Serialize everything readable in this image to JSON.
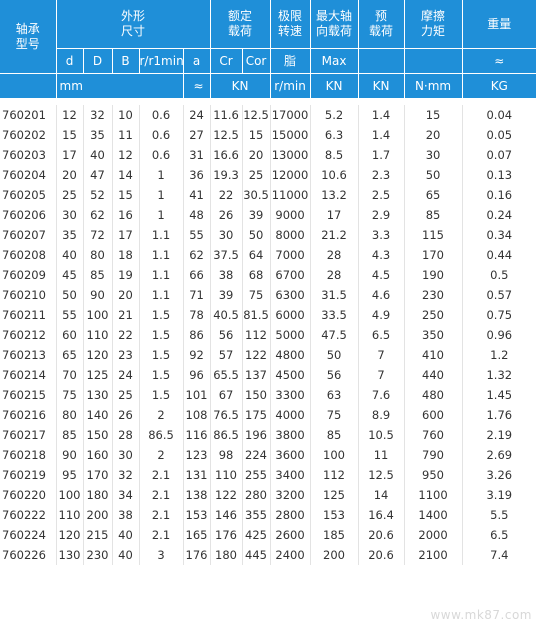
{
  "header": {
    "model": "轴承\n型号",
    "dims": "外形\n尺寸",
    "rated_load": "额定\n载荷",
    "speed_limit": "极限\n转速",
    "max_axial": "最大轴\n向载荷",
    "preload": "预\n载荷",
    "friction": "摩擦\n力矩",
    "weight": "重量",
    "sub": [
      "d",
      "D",
      "B",
      "r/r1min",
      "a",
      "Cr",
      "Cor",
      "脂",
      "Max",
      "",
      "",
      "≈"
    ],
    "unit_mm": "mm",
    "unit_approx": "≈",
    "unit_kn": "KN",
    "unit_rmin": "r/min",
    "unit_kn2": "KN",
    "unit_kn3": "KN",
    "unit_nmm": "N·mm",
    "unit_kg": "KG"
  },
  "rows": [
    [
      "760201",
      "12",
      "32",
      "10",
      "0.6",
      "24",
      "11.6",
      "12.5",
      "17000",
      "5.2",
      "1.4",
      "15",
      "0.04"
    ],
    [
      "760202",
      "15",
      "35",
      "11",
      "0.6",
      "27",
      "12.5",
      "15",
      "15000",
      "6.3",
      "1.4",
      "20",
      "0.05"
    ],
    [
      "760203",
      "17",
      "40",
      "12",
      "0.6",
      "31",
      "16.6",
      "20",
      "13000",
      "8.5",
      "1.7",
      "30",
      "0.07"
    ],
    [
      "760204",
      "20",
      "47",
      "14",
      "1",
      "36",
      "19.3",
      "25",
      "12000",
      "10.6",
      "2.3",
      "50",
      "0.13"
    ],
    [
      "760205",
      "25",
      "52",
      "15",
      "1",
      "41",
      "22",
      "30.5",
      "11000",
      "13.2",
      "2.5",
      "65",
      "0.16"
    ],
    [
      "760206",
      "30",
      "62",
      "16",
      "1",
      "48",
      "26",
      "39",
      "9000",
      "17",
      "2.9",
      "85",
      "0.24"
    ],
    [
      "760207",
      "35",
      "72",
      "17",
      "1.1",
      "55",
      "30",
      "50",
      "8000",
      "21.2",
      "3.3",
      "115",
      "0.34"
    ],
    [
      "760208",
      "40",
      "80",
      "18",
      "1.1",
      "62",
      "37.5",
      "64",
      "7000",
      "28",
      "4.3",
      "170",
      "0.44"
    ],
    [
      "760209",
      "45",
      "85",
      "19",
      "1.1",
      "66",
      "38",
      "68",
      "6700",
      "28",
      "4.5",
      "190",
      "0.5"
    ],
    [
      "760210",
      "50",
      "90",
      "20",
      "1.1",
      "71",
      "39",
      "75",
      "6300",
      "31.5",
      "4.6",
      "230",
      "0.57"
    ],
    [
      "760211",
      "55",
      "100",
      "21",
      "1.5",
      "78",
      "40.5",
      "81.5",
      "6000",
      "33.5",
      "4.9",
      "250",
      "0.75"
    ],
    [
      "760212",
      "60",
      "110",
      "22",
      "1.5",
      "86",
      "56",
      "112",
      "5000",
      "47.5",
      "6.5",
      "350",
      "0.96"
    ],
    [
      "760213",
      "65",
      "120",
      "23",
      "1.5",
      "92",
      "57",
      "122",
      "4800",
      "50",
      "7",
      "410",
      "1.2"
    ],
    [
      "760214",
      "70",
      "125",
      "24",
      "1.5",
      "96",
      "65.5",
      "137",
      "4500",
      "56",
      "7",
      "440",
      "1.32"
    ],
    [
      "760215",
      "75",
      "130",
      "25",
      "1.5",
      "101",
      "67",
      "150",
      "3300",
      "63",
      "7.6",
      "480",
      "1.45"
    ],
    [
      "760216",
      "80",
      "140",
      "26",
      "2",
      "108",
      "76.5",
      "175",
      "4000",
      "75",
      "8.9",
      "600",
      "1.76"
    ],
    [
      "760217",
      "85",
      "150",
      "28",
      "86.5",
      "116",
      "86.5",
      "196",
      "3800",
      "85",
      "10.5",
      "760",
      "2.19"
    ],
    [
      "760218",
      "90",
      "160",
      "30",
      "2",
      "123",
      "98",
      "224",
      "3600",
      "100",
      "11",
      "790",
      "2.69"
    ],
    [
      "760219",
      "95",
      "170",
      "32",
      "2.1",
      "131",
      "110",
      "255",
      "3400",
      "112",
      "12.5",
      "950",
      "3.26"
    ],
    [
      "760220",
      "100",
      "180",
      "34",
      "2.1",
      "138",
      "122",
      "280",
      "3200",
      "125",
      "14",
      "1100",
      "3.19"
    ],
    [
      "760222",
      "110",
      "200",
      "38",
      "2.1",
      "153",
      "146",
      "355",
      "2800",
      "153",
      "16.4",
      "1400",
      "5.5"
    ],
    [
      "760224",
      "120",
      "215",
      "40",
      "2.1",
      "165",
      "176",
      "425",
      "2600",
      "185",
      "20.6",
      "2000",
      "6.5"
    ],
    [
      "760226",
      "130",
      "230",
      "40",
      "3",
      "176",
      "180",
      "445",
      "2400",
      "200",
      "20.6",
      "2100",
      "7.4"
    ]
  ],
  "watermark": "www.mk87.com"
}
